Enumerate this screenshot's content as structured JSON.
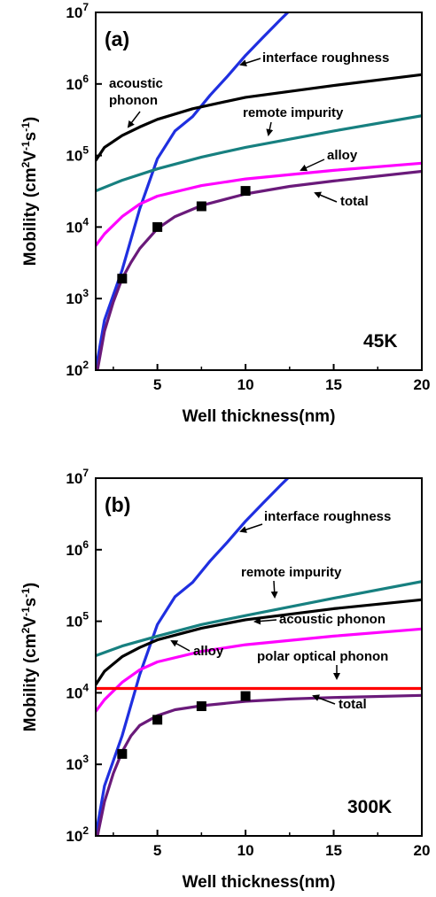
{
  "chart_data": [
    {
      "type": "line",
      "panel_label": "(a)",
      "temperature_label": "45K",
      "xlabel": "Well thickness(nm)",
      "ylabel_base": "Mobility (cm",
      "ylabel_unit_sup1": "2",
      "ylabel_unit_v": "V",
      "ylabel_unit_sup2": "-1",
      "ylabel_unit_s": "s",
      "ylabel_unit_sup3": "-1",
      "ylabel_close": ")",
      "xlim": [
        1.5,
        20
      ],
      "ylim": [
        100,
        10000000
      ],
      "yscale": "log",
      "x_ticks": [
        5,
        10,
        15,
        20
      ],
      "x_tick_labels": [
        "5",
        "10",
        "15",
        "20"
      ],
      "y_ticks": [
        100,
        1000,
        10000,
        100000,
        1000000,
        10000000
      ],
      "y_tick_labels": [
        {
          "base": "10",
          "exp": "2"
        },
        {
          "base": "10",
          "exp": "3"
        },
        {
          "base": "10",
          "exp": "4"
        },
        {
          "base": "10",
          "exp": "5"
        },
        {
          "base": "10",
          "exp": "6"
        },
        {
          "base": "10",
          "exp": "7"
        }
      ],
      "series": [
        {
          "name": "interface roughness",
          "color": "#1f2fe0",
          "x": [
            1.5,
            2,
            3,
            4,
            5,
            6,
            7,
            8,
            9,
            10,
            11,
            12,
            12.4
          ],
          "y": [
            100,
            500,
            2500,
            18000,
            90000,
            220000,
            350000,
            700000,
            1300000,
            2500000,
            4500000,
            8000000,
            10000000
          ]
        },
        {
          "name": "acoustic phonon",
          "color": "#000000",
          "x": [
            1.5,
            2,
            3,
            4,
            5,
            7,
            10,
            15,
            20
          ],
          "y": [
            85000,
            130000,
            190000,
            250000,
            320000,
            450000,
            650000,
            950000,
            1350000
          ]
        },
        {
          "name": "remote impurity",
          "color": "#178080",
          "x": [
            1.5,
            3,
            5,
            7.5,
            10,
            15,
            20
          ],
          "y": [
            32000,
            45000,
            65000,
            95000,
            130000,
            220000,
            360000
          ]
        },
        {
          "name": "alloy",
          "color": "#ff00ff",
          "x": [
            1.5,
            2,
            3,
            4,
            5,
            7.5,
            10,
            15,
            20
          ],
          "y": [
            5500,
            8000,
            14000,
            21000,
            27000,
            38000,
            47000,
            62000,
            78000
          ]
        },
        {
          "name": "total",
          "color": "#6a1a7a",
          "x": [
            1.6,
            2,
            2.5,
            3,
            3.5,
            4,
            5,
            6,
            7.5,
            10,
            12.5,
            15,
            20
          ],
          "y": [
            100,
            350,
            900,
            1900,
            3200,
            5000,
            9500,
            14000,
            20000,
            29000,
            37000,
            44000,
            60000
          ]
        }
      ],
      "markers": {
        "name": "measured",
        "x": [
          3,
          5,
          7.5,
          10
        ],
        "y": [
          1900,
          10000,
          19500,
          32000
        ]
      },
      "annotations": [
        {
          "text": "acoustic",
          "series": "acoustic phonon"
        },
        {
          "text": "phonon",
          "series": "acoustic phonon"
        },
        {
          "text": "interface roughness",
          "series": "interface roughness"
        },
        {
          "text": "remote impurity",
          "series": "remote impurity"
        },
        {
          "text": "alloy",
          "series": "alloy"
        },
        {
          "text": "total",
          "series": "total"
        }
      ]
    },
    {
      "type": "line",
      "panel_label": "(b)",
      "temperature_label": "300K",
      "xlabel": "Well thickness(nm)",
      "ylabel_base": "Mobility (cm",
      "ylabel_unit_sup1": "2",
      "ylabel_unit_v": "V",
      "ylabel_unit_sup2": "-1",
      "ylabel_unit_s": "s",
      "ylabel_unit_sup3": "-1",
      "ylabel_close": ")",
      "xlim": [
        1.5,
        20
      ],
      "ylim": [
        100,
        10000000
      ],
      "yscale": "log",
      "x_ticks": [
        5,
        10,
        15,
        20
      ],
      "x_tick_labels": [
        "5",
        "10",
        "15",
        "20"
      ],
      "y_ticks": [
        100,
        1000,
        10000,
        100000,
        1000000,
        10000000
      ],
      "y_tick_labels": [
        {
          "base": "10",
          "exp": "2"
        },
        {
          "base": "10",
          "exp": "3"
        },
        {
          "base": "10",
          "exp": "4"
        },
        {
          "base": "10",
          "exp": "5"
        },
        {
          "base": "10",
          "exp": "6"
        },
        {
          "base": "10",
          "exp": "7"
        }
      ],
      "series": [
        {
          "name": "interface roughness",
          "color": "#1f2fe0",
          "x": [
            1.5,
            2,
            3,
            4,
            5,
            6,
            7,
            8,
            9,
            10,
            11,
            12,
            12.4
          ],
          "y": [
            100,
            500,
            2500,
            18000,
            90000,
            220000,
            350000,
            700000,
            1300000,
            2500000,
            4500000,
            8000000,
            10000000
          ]
        },
        {
          "name": "remote impurity",
          "color": "#178080",
          "x": [
            1.5,
            3,
            5,
            7.5,
            10,
            15,
            20
          ],
          "y": [
            33000,
            45000,
            62000,
            90000,
            120000,
            210000,
            360000
          ]
        },
        {
          "name": "acoustic phonon",
          "color": "#000000",
          "x": [
            1.5,
            2,
            3,
            4,
            5,
            7.5,
            10,
            15,
            20
          ],
          "y": [
            13000,
            20000,
            32000,
            43000,
            55000,
            80000,
            105000,
            150000,
            200000
          ]
        },
        {
          "name": "alloy",
          "color": "#ff00ff",
          "x": [
            1.5,
            2,
            3,
            4,
            5,
            7.5,
            10,
            15,
            20
          ],
          "y": [
            5500,
            8000,
            14000,
            21000,
            27000,
            38000,
            47000,
            62000,
            78000
          ]
        },
        {
          "name": "polar optical phonon",
          "color": "#ff0000",
          "x": [
            1.5,
            20
          ],
          "y": [
            11500,
            11500
          ]
        },
        {
          "name": "total",
          "color": "#6a1a7a",
          "x": [
            1.6,
            2,
            2.5,
            3,
            3.5,
            4,
            5,
            6,
            7.5,
            10,
            12.5,
            15,
            20
          ],
          "y": [
            100,
            300,
            750,
            1500,
            2500,
            3500,
            4800,
            5800,
            6600,
            7600,
            8200,
            8600,
            9200
          ]
        }
      ],
      "markers": {
        "name": "measured",
        "x": [
          3,
          5,
          7.5,
          10
        ],
        "y": [
          1400,
          4200,
          6500,
          9000
        ]
      },
      "annotations": [
        {
          "text": "interface roughness",
          "series": "interface roughness"
        },
        {
          "text": "remote impurity",
          "series": "remote impurity"
        },
        {
          "text": "acoustic phonon",
          "series": "acoustic phonon"
        },
        {
          "text": "alloy",
          "series": "alloy"
        },
        {
          "text": "polar optical phonon",
          "series": "polar optical phonon"
        },
        {
          "text": "total",
          "series": "total"
        }
      ]
    }
  ]
}
